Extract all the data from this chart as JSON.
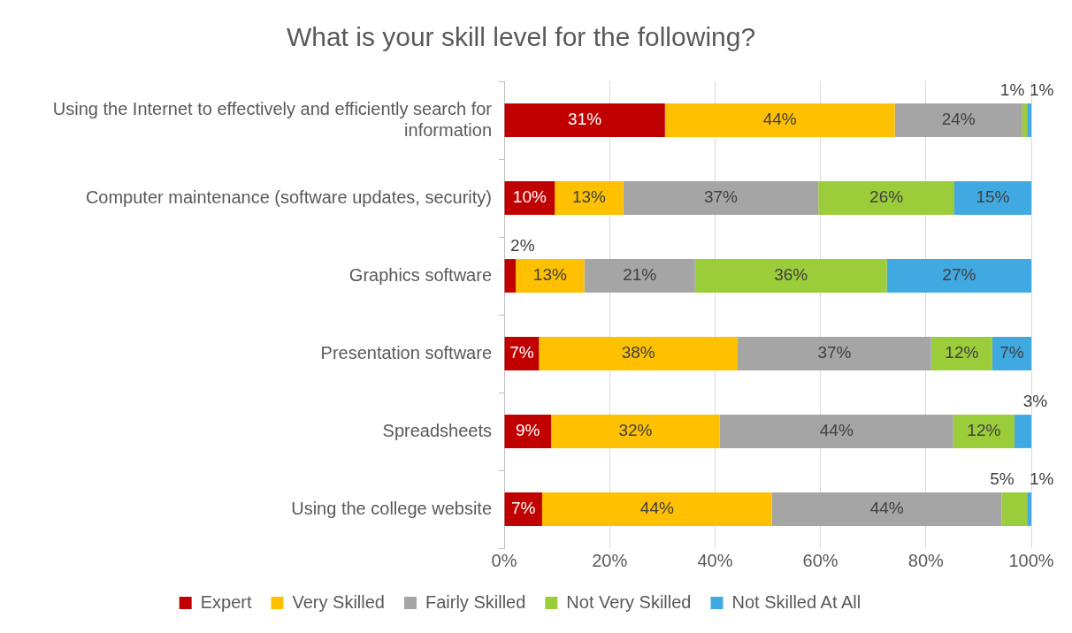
{
  "chart_data": {
    "type": "bar",
    "orientation": "horizontal",
    "stacked": true,
    "title": "What is your skill level for the following?",
    "categories": [
      "Using the Internet to effectively and efficiently search for information",
      "Computer maintenance (software updates, security)",
      "Graphics software",
      "Presentation software",
      "Spreadsheets",
      "Using the college website"
    ],
    "series": [
      {
        "name": "Expert",
        "color": "#c00000",
        "values": [
          30.5,
          9.6,
          2.2,
          6.6,
          8.9,
          7.2
        ],
        "value_labels": [
          "31%",
          "10%",
          "2%",
          "7%",
          "9%",
          "7%"
        ]
      },
      {
        "name": "Very Skilled",
        "color": "#ffc000",
        "values": [
          43.6,
          13.0,
          13.0,
          37.7,
          32.0,
          43.6
        ],
        "value_labels": [
          "44%",
          "13%",
          "13%",
          "38%",
          "32%",
          "44%"
        ]
      },
      {
        "name": "Fairly Skilled",
        "color": "#a5a5a5",
        "values": [
          24.2,
          37.0,
          21.0,
          36.7,
          44.3,
          43.6
        ],
        "value_labels": [
          "24%",
          "37%",
          "21%",
          "37%",
          "44%",
          "44%"
        ]
      },
      {
        "name": "Not Very Skilled",
        "color": "#9bcc3a",
        "values": [
          0.9,
          25.8,
          36.4,
          11.6,
          11.6,
          4.8
        ],
        "value_labels": [
          "1%",
          "26%",
          "36%",
          "12%",
          "12%",
          "5%"
        ]
      },
      {
        "name": "Not Skilled At All",
        "color": "#41a9e1",
        "values": [
          0.8,
          14.6,
          27.4,
          7.4,
          3.2,
          0.8
        ],
        "value_labels": [
          "1%",
          "15%",
          "27%",
          "7%",
          "3%",
          "1%"
        ]
      }
    ],
    "xlim": [
      0,
      100
    ],
    "xticks": [
      {
        "value": 0,
        "label": "0%"
      },
      {
        "value": 20,
        "label": "20%"
      },
      {
        "value": 40,
        "label": "40%"
      },
      {
        "value": 60,
        "label": "60%"
      },
      {
        "value": 80,
        "label": "80%"
      },
      {
        "value": 100,
        "label": "100%"
      }
    ],
    "grid": "x",
    "legend": "bottom"
  }
}
